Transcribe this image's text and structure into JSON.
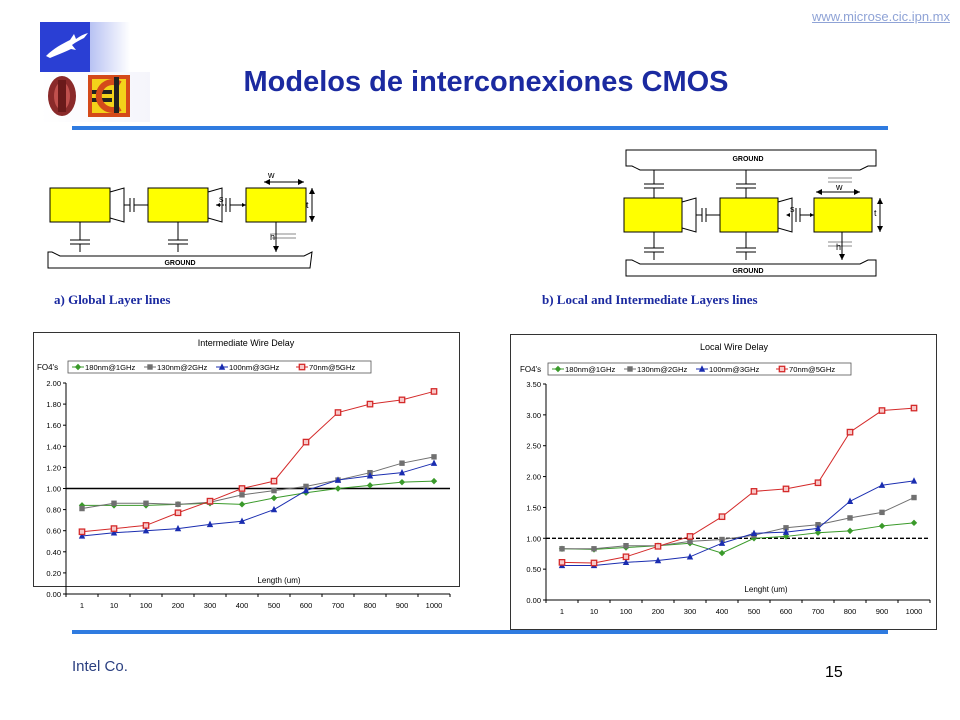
{
  "header": {
    "url": "www.microse.cic.ipn.mx",
    "title": "Modelos de interconexiones CMOS"
  },
  "diagrams": {
    "global": {
      "caption": "a) Global Layer lines",
      "ground_label": "GROUND",
      "labels": {
        "w": "w",
        "s": "s",
        "t": "t",
        "h": "h"
      }
    },
    "local": {
      "caption": "b) Local and Intermediate Layers lines",
      "ground_top_label": "GROUND",
      "ground_bottom_label": "GROUND",
      "labels": {
        "w": "w",
        "s": "s",
        "t": "t",
        "h": "h"
      }
    }
  },
  "footer": {
    "source": "Intel Co.",
    "page": "15"
  },
  "chart_data": [
    {
      "type": "line",
      "title": "Intermediate Wire Delay",
      "ylabel": "FO4's",
      "xlabel": "Length (um)",
      "categories": [
        "1",
        "10",
        "100",
        "200",
        "300",
        "400",
        "500",
        "600",
        "700",
        "800",
        "900",
        "1000"
      ],
      "ylim": [
        0,
        2.0
      ],
      "yticks": [
        "0.00",
        "0.20",
        "0.40",
        "0.60",
        "0.80",
        "1.00",
        "1.20",
        "1.40",
        "1.60",
        "1.80",
        "2.00"
      ],
      "reference_line": 1.0,
      "grid": false,
      "legend": "top",
      "series": [
        {
          "name": "180nm@1GHz",
          "color": "#3a9a2a",
          "marker": "diamond",
          "values": [
            0.84,
            0.84,
            0.84,
            0.85,
            0.86,
            0.85,
            0.91,
            0.96,
            1.0,
            1.03,
            1.06,
            1.07
          ]
        },
        {
          "name": "130nm@2GHz",
          "color": "#707070",
          "marker": "square",
          "values": [
            0.81,
            0.86,
            0.86,
            0.85,
            0.87,
            0.94,
            0.98,
            1.02,
            1.08,
            1.15,
            1.24,
            1.3
          ]
        },
        {
          "name": "100nm@3GHz",
          "color": "#1a2db0",
          "marker": "triangle",
          "values": [
            0.55,
            0.58,
            0.6,
            0.62,
            0.66,
            0.69,
            0.8,
            0.98,
            1.08,
            1.12,
            1.15,
            1.24
          ]
        },
        {
          "name": "70nm@5GHz",
          "color": "#d42a2a",
          "marker": "square-open",
          "values": [
            0.59,
            0.62,
            0.65,
            0.77,
            0.88,
            1.0,
            1.07,
            1.44,
            1.72,
            1.8,
            1.84,
            1.92
          ]
        }
      ]
    },
    {
      "type": "line",
      "title": "Local Wire Delay",
      "ylabel": "FO4's",
      "xlabel": "Lenght (um)",
      "categories": [
        "1",
        "10",
        "100",
        "200",
        "300",
        "400",
        "500",
        "600",
        "700",
        "800",
        "900",
        "1000"
      ],
      "ylim": [
        0,
        3.5
      ],
      "yticks": [
        "0.00",
        "0.50",
        "1.00",
        "1.50",
        "2.00",
        "2.50",
        "3.00",
        "3.50"
      ],
      "reference_line": 1.0,
      "grid": false,
      "legend": "top",
      "series": [
        {
          "name": "180nm@1GHz",
          "color": "#3a9a2a",
          "marker": "diamond",
          "values": [
            0.83,
            0.82,
            0.85,
            0.88,
            0.92,
            0.76,
            1.0,
            1.03,
            1.09,
            1.12,
            1.2,
            1.25
          ]
        },
        {
          "name": "130nm@2GHz",
          "color": "#707070",
          "marker": "square",
          "values": [
            0.83,
            0.83,
            0.88,
            0.88,
            0.95,
            0.98,
            1.05,
            1.17,
            1.22,
            1.33,
            1.42,
            1.66
          ]
        },
        {
          "name": "100nm@3GHz",
          "color": "#1a2db0",
          "marker": "triangle",
          "values": [
            0.56,
            0.56,
            0.61,
            0.64,
            0.7,
            0.92,
            1.08,
            1.1,
            1.16,
            1.6,
            1.86,
            1.93
          ]
        },
        {
          "name": "70nm@5GHz",
          "color": "#d42a2a",
          "marker": "square-open",
          "values": [
            0.61,
            0.6,
            0.7,
            0.87,
            1.03,
            1.35,
            1.76,
            1.8,
            1.9,
            2.72,
            3.07,
            3.11
          ]
        }
      ]
    }
  ]
}
